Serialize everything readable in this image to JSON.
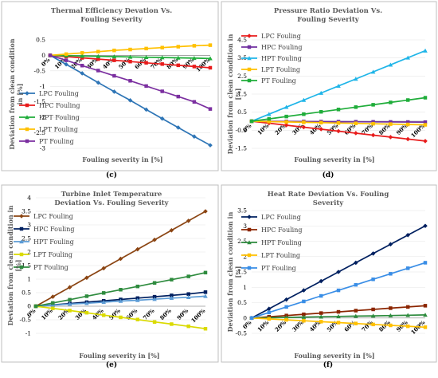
{
  "chart_data": [
    {
      "type": "line",
      "title": [
        "Thermal Efficiency Devation Vs.",
        "Fouling Severity"
      ],
      "xlabel": "Fouling severity in [%]",
      "ylabel": [
        "Deviation from clean condition",
        "in [%]"
      ],
      "caption": "(c)",
      "x": [
        "0%",
        "10%",
        "20%",
        "30%",
        "40%",
        "50%",
        "60%",
        "70%",
        "80%",
        "90%",
        "100%"
      ],
      "ylim": [
        -3,
        0.5
      ],
      "yticks": [
        0.5,
        0,
        -0.5,
        -1,
        -1.5,
        -2,
        -2.5,
        -3
      ],
      "ytick_labels": [
        "0.5",
        "0",
        "-0.5",
        "-1",
        "-1.5",
        "-2",
        "-2.5",
        "-3"
      ],
      "legend": "left",
      "series": [
        {
          "name": "LPC Fouling",
          "color": "#2e75b6",
          "marker": "diamond",
          "values": [
            0,
            -0.29,
            -0.58,
            -0.88,
            -1.17,
            -1.45,
            -1.75,
            -2.04,
            -2.33,
            -2.62,
            -2.9
          ]
        },
        {
          "name": "HPC Fouling",
          "color": "#e81c1c",
          "marker": "square",
          "values": [
            0,
            -0.04,
            -0.08,
            -0.12,
            -0.16,
            -0.2,
            -0.24,
            -0.28,
            -0.32,
            -0.36,
            -0.4
          ]
        },
        {
          "name": "HPT Fouling",
          "color": "#1fad3a",
          "marker": "triangle",
          "values": [
            0,
            -0.01,
            -0.02,
            -0.03,
            -0.04,
            -0.05,
            -0.06,
            -0.07,
            -0.08,
            -0.09,
            -0.1
          ]
        },
        {
          "name": "LPT Fouling",
          "color": "#ffc000",
          "marker": "square",
          "values": [
            0,
            0.04,
            0.08,
            0.12,
            0.16,
            0.19,
            0.22,
            0.25,
            0.28,
            0.31,
            0.33
          ]
        },
        {
          "name": "PT Fouling",
          "color": "#7b2fa0",
          "marker": "square",
          "values": [
            0,
            -0.16,
            -0.33,
            -0.49,
            -0.66,
            -0.82,
            -0.99,
            -1.16,
            -1.33,
            -1.5,
            -1.73
          ]
        }
      ]
    },
    {
      "type": "line",
      "title": [
        "Pressure Ratio Deviation Vs.",
        "Fouling Severity"
      ],
      "xlabel": "Fouling severity in [%]",
      "ylabel": [
        "Deviation from clean condition in",
        "[%]"
      ],
      "caption": "(d)",
      "x": [
        "0%",
        "10%",
        "20%",
        "30%",
        "40%",
        "50%",
        "60%",
        "70%",
        "80%",
        "90%",
        "100%"
      ],
      "ylim": [
        -1.5,
        4.5
      ],
      "yticks": [
        4.5,
        3.5,
        2.5,
        1.5,
        0.5,
        -0.5,
        -1.5
      ],
      "ytick_labels": [
        "4.5",
        "3.5",
        "2.5",
        "1.5",
        "0.5",
        "-0.5",
        "-1.5"
      ],
      "legend": "left",
      "series": [
        {
          "name": "LPC Fouling",
          "color": "#e81c1c",
          "marker": "diamond",
          "values": [
            0,
            -0.11,
            -0.22,
            -0.33,
            -0.44,
            -0.55,
            -0.66,
            -0.77,
            -0.88,
            -0.99,
            -1.1
          ]
        },
        {
          "name": "HPC Fouling",
          "color": "#7030a0",
          "marker": "square",
          "values": [
            0,
            -0.005,
            -0.01,
            -0.015,
            -0.02,
            -0.025,
            -0.03,
            -0.035,
            -0.04,
            -0.045,
            -0.05
          ]
        },
        {
          "name": "HPT Fouling",
          "color": "#1fb5e8",
          "marker": "triangle",
          "values": [
            0,
            0.39,
            0.78,
            1.17,
            1.56,
            1.95,
            2.34,
            2.73,
            3.12,
            3.51,
            3.9
          ]
        },
        {
          "name": "LPT Fouling",
          "color": "#ffc000",
          "marker": "square",
          "values": [
            0,
            -0.02,
            -0.04,
            -0.06,
            -0.08,
            -0.1,
            -0.12,
            -0.14,
            -0.16,
            -0.18,
            -0.2
          ]
        },
        {
          "name": "PT Fouling",
          "color": "#1fad3a",
          "marker": "square",
          "values": [
            0,
            0.13,
            0.26,
            0.39,
            0.52,
            0.65,
            0.78,
            0.91,
            1.04,
            1.17,
            1.3
          ]
        }
      ]
    },
    {
      "type": "line",
      "title": [
        "Turbine Inlet Temperature",
        "Deviation Vs. Fouling Severity"
      ],
      "xlabel": "Fouling severity in [%]",
      "ylabel": [
        "Deviation from clean condition in",
        "[%]"
      ],
      "caption": "(e)",
      "x": [
        "0%",
        "10%",
        "20%",
        "30%",
        "40%",
        "50%",
        "60%",
        "70%",
        "80%",
        "90%",
        "100%"
      ],
      "ylim": [
        -1,
        4
      ],
      "yticks": [
        4,
        3.5,
        3,
        2.5,
        2,
        1.5,
        1,
        0.5,
        0,
        -0.5,
        -1
      ],
      "ytick_labels": [
        "4",
        "3.5",
        "3",
        "2.5",
        "2",
        "1.5",
        "1",
        "0.5",
        "0",
        "-0.5",
        "-1"
      ],
      "legend": "left",
      "series": [
        {
          "name": "LPC Fouling",
          "color": "#8b4513",
          "marker": "diamond",
          "values": [
            0,
            0.35,
            0.7,
            1.05,
            1.4,
            1.75,
            2.1,
            2.45,
            2.8,
            3.15,
            3.5
          ]
        },
        {
          "name": "HPC Fouling",
          "color": "#002060",
          "marker": "square",
          "values": [
            0,
            0.05,
            0.1,
            0.15,
            0.2,
            0.25,
            0.3,
            0.35,
            0.4,
            0.45,
            0.52
          ]
        },
        {
          "name": "HPT Fouling",
          "color": "#5b9bd5",
          "marker": "triangle",
          "values": [
            0,
            0.04,
            0.08,
            0.11,
            0.15,
            0.19,
            0.22,
            0.26,
            0.3,
            0.33,
            0.37
          ]
        },
        {
          "name": "LPT Fouling",
          "color": "#dada00",
          "marker": "square",
          "values": [
            0,
            -0.08,
            -0.16,
            -0.24,
            -0.33,
            -0.41,
            -0.49,
            -0.58,
            -0.66,
            -0.74,
            -0.83
          ]
        },
        {
          "name": "PT Fouling",
          "color": "#2e8b3e",
          "marker": "square",
          "values": [
            0,
            0.12,
            0.24,
            0.37,
            0.49,
            0.61,
            0.73,
            0.86,
            0.98,
            1.1,
            1.24
          ]
        }
      ]
    },
    {
      "type": "line",
      "title": [
        "Heat Rate Deviation Vs. Fouling",
        "Severity"
      ],
      "xlabel": "Fouling severity in [%]",
      "ylabel": [
        "Deviation from clean condition in",
        "[%]"
      ],
      "caption": "(f)",
      "x": [
        "0%",
        "10%",
        "20%",
        "30%",
        "40%",
        "50%",
        "60%",
        "70%",
        "80%",
        "90%",
        "100%"
      ],
      "ylim": [
        -0.5,
        3.5
      ],
      "yticks": [
        3.5,
        3,
        2.5,
        2,
        1.5,
        1,
        0.5,
        0,
        -0.5
      ],
      "ytick_labels": [
        "3.5",
        "3",
        "2.5",
        "2",
        "1.5",
        "1",
        "0.5",
        "0",
        "-0.5"
      ],
      "legend": "left",
      "series": [
        {
          "name": "LPC Fouling",
          "color": "#002060",
          "marker": "diamond",
          "values": [
            0,
            0.3,
            0.6,
            0.9,
            1.2,
            1.5,
            1.8,
            2.1,
            2.4,
            2.7,
            3.0
          ]
        },
        {
          "name": "HPC Fouling",
          "color": "#8b2500",
          "marker": "square",
          "values": [
            0,
            0.04,
            0.08,
            0.12,
            0.16,
            0.2,
            0.24,
            0.28,
            0.32,
            0.36,
            0.4
          ]
        },
        {
          "name": "HPT Fouling",
          "color": "#2e8b3e",
          "marker": "triangle",
          "values": [
            0,
            0.01,
            0.02,
            0.03,
            0.04,
            0.05,
            0.06,
            0.07,
            0.08,
            0.09,
            0.1
          ]
        },
        {
          "name": "LPT Fouling",
          "color": "#ffc000",
          "marker": "square",
          "values": [
            0,
            -0.03,
            -0.06,
            -0.09,
            -0.12,
            -0.15,
            -0.18,
            -0.21,
            -0.24,
            -0.27,
            -0.3
          ]
        },
        {
          "name": "PT Fouling",
          "color": "#3a8ee6",
          "marker": "square",
          "values": [
            0,
            0.18,
            0.36,
            0.54,
            0.72,
            0.9,
            1.08,
            1.26,
            1.44,
            1.62,
            1.8
          ]
        }
      ]
    }
  ]
}
